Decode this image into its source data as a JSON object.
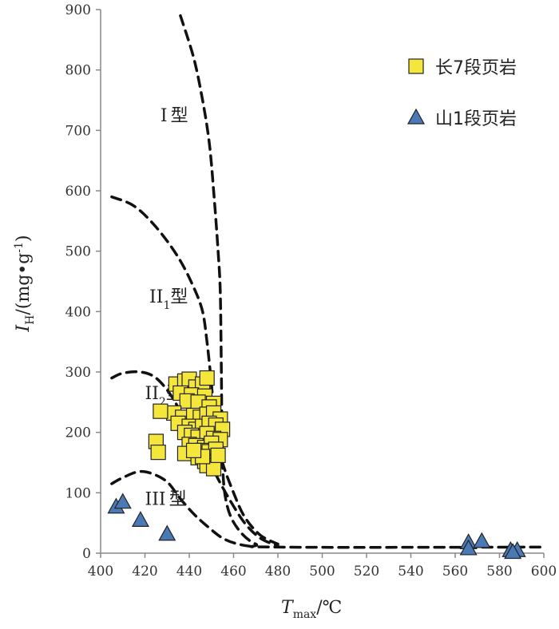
{
  "chart_data": {
    "type": "scatter",
    "xlabel": {
      "main": "T",
      "sub": "max",
      "unit": "/℃"
    },
    "ylabel": {
      "main": "I",
      "sub": "H",
      "unit": "/(mg•g",
      "sup": "-1",
      "close": ")"
    },
    "xlim": [
      400,
      600
    ],
    "ylim": [
      0,
      900
    ],
    "xticks": [
      "400",
      "420",
      "440",
      "460",
      "480",
      "500",
      "520",
      "540",
      "560",
      "580",
      "600"
    ],
    "yticks": [
      "0",
      "100",
      "200",
      "300",
      "400",
      "500",
      "600",
      "700",
      "800",
      "900"
    ],
    "grid": false,
    "legend_position": "top-right",
    "colors": {
      "square": "#f5e63c",
      "triangle": "#4a79b5",
      "stroke": "#222222"
    },
    "regions": [
      {
        "roman": "I",
        "sub": "",
        "suffix": "型",
        "x": 427,
        "y": 715
      },
      {
        "roman": "II",
        "sub": "1",
        "suffix": "型",
        "x": 422,
        "y": 415
      },
      {
        "roman": "II",
        "sub": "2",
        "suffix": "型",
        "x": 420,
        "y": 255
      },
      {
        "roman": "III",
        "sub": "",
        "suffix": "型",
        "x": 420,
        "y": 80
      }
    ],
    "boundaries": [
      {
        "points": [
          [
            436,
            890
          ],
          [
            442,
            820
          ],
          [
            446,
            750
          ],
          [
            449,
            680
          ],
          [
            451,
            600
          ],
          [
            453,
            500
          ],
          [
            454,
            430
          ],
          [
            454.5,
            300
          ],
          [
            455,
            150
          ],
          [
            457,
            80
          ],
          [
            462,
            40
          ],
          [
            470,
            15
          ],
          [
            480,
            10
          ],
          [
            600,
            10
          ]
        ]
      },
      {
        "points": [
          [
            405,
            590
          ],
          [
            415,
            575
          ],
          [
            425,
            540
          ],
          [
            435,
            490
          ],
          [
            442,
            440
          ],
          [
            446,
            400
          ],
          [
            448,
            350
          ],
          [
            450,
            280
          ],
          [
            452,
            200
          ],
          [
            455,
            150
          ],
          [
            460,
            100
          ],
          [
            465,
            60
          ],
          [
            472,
            30
          ],
          [
            480,
            15
          ]
        ]
      },
      {
        "points": [
          [
            405,
            290
          ],
          [
            410,
            298
          ],
          [
            418,
            300
          ],
          [
            425,
            290
          ],
          [
            432,
            260
          ],
          [
            438,
            220
          ],
          [
            443,
            190
          ],
          [
            448,
            160
          ],
          [
            452,
            130
          ],
          [
            458,
            90
          ],
          [
            465,
            50
          ],
          [
            472,
            25
          ],
          [
            480,
            12
          ]
        ]
      },
      {
        "points": [
          [
            405,
            115
          ],
          [
            410,
            125
          ],
          [
            417,
            135
          ],
          [
            423,
            132
          ],
          [
            430,
            118
          ],
          [
            436,
            90
          ],
          [
            442,
            65
          ],
          [
            448,
            45
          ],
          [
            455,
            25
          ],
          [
            462,
            15
          ],
          [
            470,
            10
          ]
        ]
      }
    ],
    "series": [
      {
        "name": "长7段页岩",
        "marker": "square",
        "points": [
          [
            434,
            280
          ],
          [
            438,
            285
          ],
          [
            440,
            288
          ],
          [
            443,
            275
          ],
          [
            446,
            280
          ],
          [
            448,
            290
          ],
          [
            436,
            265
          ],
          [
            441,
            262
          ],
          [
            447,
            260
          ],
          [
            451,
            248
          ],
          [
            439,
            252
          ],
          [
            444,
            250
          ],
          [
            449,
            242
          ],
          [
            433,
            232
          ],
          [
            437,
            225
          ],
          [
            442,
            228
          ],
          [
            445,
            225
          ],
          [
            448,
            230
          ],
          [
            451,
            232
          ],
          [
            454,
            222
          ],
          [
            427,
            235
          ],
          [
            435,
            215
          ],
          [
            440,
            210
          ],
          [
            443,
            205
          ],
          [
            446,
            210
          ],
          [
            449,
            215
          ],
          [
            452,
            212
          ],
          [
            455,
            205
          ],
          [
            438,
            200
          ],
          [
            441,
            195
          ],
          [
            444,
            192
          ],
          [
            448,
            198
          ],
          [
            451,
            190
          ],
          [
            454,
            188
          ],
          [
            425,
            185
          ],
          [
            440,
            180
          ],
          [
            443,
            178
          ],
          [
            447,
            175
          ],
          [
            450,
            182
          ],
          [
            446,
            170
          ],
          [
            449,
            168
          ],
          [
            452,
            172
          ],
          [
            426,
            167
          ],
          [
            438,
            165
          ],
          [
            444,
            158
          ],
          [
            447,
            152
          ],
          [
            450,
            150
          ],
          [
            448,
            145
          ],
          [
            451,
            140
          ],
          [
            446,
            160
          ],
          [
            453,
            162
          ],
          [
            442,
            170
          ]
        ]
      },
      {
        "name": "山1段页岩",
        "marker": "triangle",
        "points": [
          [
            407,
            77
          ],
          [
            410,
            85
          ],
          [
            418,
            55
          ],
          [
            430,
            32
          ],
          [
            566,
            18
          ],
          [
            572,
            20
          ],
          [
            566,
            8
          ],
          [
            585,
            5
          ],
          [
            588,
            5
          ],
          [
            586,
            2
          ]
        ]
      }
    ]
  }
}
